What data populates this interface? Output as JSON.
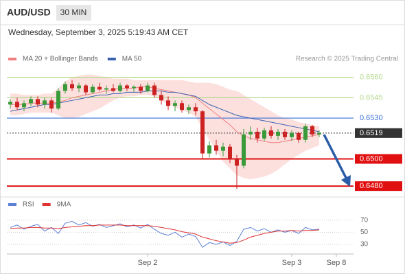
{
  "header": {
    "symbol": "AUD/USD",
    "interval": "30 MIN",
    "timestamp": "Wednesday, September 3, 2025 5:19:43 AM CET",
    "source": "Research © 2025 Trading Central"
  },
  "chart_data": {
    "type": "candlestick",
    "xlim": [
      -0.5,
      50
    ],
    "ylim": [
      0.6473,
      0.6579
    ],
    "xticks": [
      {
        "value": 20,
        "label": "Sep 2"
      },
      {
        "value": 41,
        "label": "Sep 3"
      },
      {
        "value": 47.5,
        "label": "Sep 8"
      }
    ],
    "up_color": "#3a9a3a",
    "down_color": "#cc2222",
    "candles": {
      "open": [
        0.654,
        0.6542,
        0.6538,
        0.6541,
        0.6544,
        0.654,
        0.6543,
        0.6537,
        0.655,
        0.6555,
        0.6552,
        0.6554,
        0.6549,
        0.6553,
        0.6551,
        0.6552,
        0.655,
        0.6554,
        0.6552,
        0.6553,
        0.655,
        0.6554,
        0.6547,
        0.6543,
        0.6539,
        0.6541,
        0.6536,
        0.6538,
        0.6535,
        0.6504,
        0.651,
        0.6506,
        0.6509,
        0.65,
        0.6495,
        0.6518,
        0.652,
        0.6515,
        0.6521,
        0.6517,
        0.652,
        0.6516,
        0.6519,
        0.6514,
        0.6524,
        0.6518
      ],
      "high": [
        0.6544,
        0.6545,
        0.6543,
        0.6546,
        0.6546,
        0.6545,
        0.6545,
        0.6552,
        0.6557,
        0.6558,
        0.6556,
        0.6555,
        0.6555,
        0.6556,
        0.6554,
        0.6555,
        0.6556,
        0.6555,
        0.6554,
        0.6555,
        0.6556,
        0.6556,
        0.655,
        0.6546,
        0.6543,
        0.6543,
        0.654,
        0.6541,
        0.6536,
        0.6513,
        0.6514,
        0.6512,
        0.6511,
        0.6503,
        0.6522,
        0.6524,
        0.6523,
        0.6523,
        0.6524,
        0.6522,
        0.6522,
        0.6521,
        0.652,
        0.6526,
        0.6525,
        0.6521
      ],
      "low": [
        0.6537,
        0.6536,
        0.6535,
        0.6539,
        0.6538,
        0.6537,
        0.6534,
        0.6536,
        0.6548,
        0.655,
        0.6549,
        0.6547,
        0.6548,
        0.655,
        0.6548,
        0.6549,
        0.6549,
        0.655,
        0.6549,
        0.6548,
        0.6549,
        0.6545,
        0.654,
        0.6536,
        0.6535,
        0.6534,
        0.6533,
        0.6532,
        0.65,
        0.6501,
        0.6503,
        0.6502,
        0.6497,
        0.6478,
        0.6493,
        0.6514,
        0.6512,
        0.6513,
        0.6515,
        0.6514,
        0.6514,
        0.6513,
        0.6512,
        0.6512,
        0.6516,
        0.6516
      ],
      "close": [
        0.6542,
        0.6538,
        0.6541,
        0.6544,
        0.654,
        0.6543,
        0.6537,
        0.655,
        0.6555,
        0.6552,
        0.6554,
        0.6549,
        0.6553,
        0.6551,
        0.6552,
        0.655,
        0.6554,
        0.6552,
        0.6553,
        0.655,
        0.6554,
        0.6547,
        0.6543,
        0.6539,
        0.6541,
        0.6536,
        0.6538,
        0.6535,
        0.6504,
        0.651,
        0.6506,
        0.6509,
        0.65,
        0.6495,
        0.6518,
        0.652,
        0.6515,
        0.6521,
        0.6517,
        0.652,
        0.6516,
        0.6519,
        0.6514,
        0.6524,
        0.6518,
        0.6519
      ]
    },
    "bollinger": {
      "color": "#fbd3d0",
      "upper": [
        0.6548,
        0.6548,
        0.6547,
        0.6547,
        0.6547,
        0.6548,
        0.6548,
        0.6552,
        0.6557,
        0.656,
        0.6561,
        0.6562,
        0.6562,
        0.6561,
        0.656,
        0.6559,
        0.6559,
        0.6559,
        0.6558,
        0.6558,
        0.6558,
        0.6558,
        0.6558,
        0.6558,
        0.6558,
        0.6558,
        0.6557,
        0.6556,
        0.6556,
        0.6556,
        0.6555,
        0.6553,
        0.6551,
        0.655,
        0.6547,
        0.6544,
        0.6541,
        0.6538,
        0.6535,
        0.6532,
        0.653,
        0.6529,
        0.6527,
        0.6526,
        0.6525,
        0.6524
      ],
      "lower": [
        0.6532,
        0.6532,
        0.6533,
        0.6534,
        0.6534,
        0.6534,
        0.6534,
        0.6532,
        0.653,
        0.653,
        0.6531,
        0.6533,
        0.6535,
        0.6537,
        0.654,
        0.6543,
        0.6545,
        0.6546,
        0.6546,
        0.6547,
        0.6547,
        0.6546,
        0.6543,
        0.654,
        0.6538,
        0.6536,
        0.6534,
        0.6531,
        0.6522,
        0.6514,
        0.6506,
        0.6498,
        0.6493,
        0.6488,
        0.6486,
        0.6485,
        0.6486,
        0.6487,
        0.6489,
        0.6492,
        0.6496,
        0.65,
        0.6503,
        0.6506,
        0.6508,
        0.651
      ]
    },
    "series": [
      {
        "name": "MA 20 + Bollinger Bands",
        "color": "#f08080",
        "values": [
          0.654,
          0.654,
          0.654,
          0.6541,
          0.6541,
          0.6541,
          0.6541,
          0.6542,
          0.6543,
          0.6545,
          0.6546,
          0.6547,
          0.6548,
          0.6549,
          0.655,
          0.6551,
          0.6552,
          0.6552,
          0.6552,
          0.6553,
          0.6553,
          0.6552,
          0.6551,
          0.655,
          0.6549,
          0.6548,
          0.6547,
          0.6545,
          0.6541,
          0.6537,
          0.6533,
          0.6529,
          0.6525,
          0.652,
          0.6517,
          0.6515,
          0.6514,
          0.6513,
          0.6512,
          0.6512,
          0.6513,
          0.6514,
          0.6515,
          0.6516,
          0.6517,
          0.6518
        ]
      },
      {
        "name": "MA 50",
        "color": "#3a62b0",
        "values": [
          0.6535,
          0.6536,
          0.6537,
          0.6538,
          0.6539,
          0.654,
          0.654,
          0.6541,
          0.6542,
          0.6543,
          0.6544,
          0.6545,
          0.6546,
          0.6547,
          0.6547,
          0.6548,
          0.6548,
          0.6549,
          0.6549,
          0.6549,
          0.655,
          0.655,
          0.655,
          0.6549,
          0.6549,
          0.6548,
          0.6547,
          0.6546,
          0.6543,
          0.654,
          0.6538,
          0.6536,
          0.6534,
          0.6532,
          0.6531,
          0.653,
          0.6529,
          0.6528,
          0.6527,
          0.6526,
          0.6525,
          0.6524,
          0.6523,
          0.6522,
          0.6521,
          0.652
        ]
      }
    ],
    "levels": [
      {
        "value": 0.656,
        "label": "0.6560",
        "color": "#b5d98c",
        "box": false
      },
      {
        "value": 0.6545,
        "label": "0.6545",
        "color": "#b5d98c",
        "box": false
      },
      {
        "value": 0.653,
        "label": "0.6530",
        "color": "#3a6fd8",
        "box": false
      },
      {
        "value": 0.6519,
        "label": "0.6519",
        "color": "#333333",
        "box": true,
        "dashed": true
      },
      {
        "value": 0.65,
        "label": "0.6500",
        "color": "#e01010",
        "box": true
      },
      {
        "value": 0.648,
        "label": "0.6480",
        "color": "#e01010",
        "box": true
      }
    ],
    "rsi": {
      "ylim": [
        14,
        88
      ],
      "yticks": [
        30,
        50,
        70
      ],
      "series": [
        {
          "name": "RSI",
          "color": "#5b7fd6",
          "values": [
            58,
            62,
            55,
            60,
            63,
            52,
            58,
            48,
            65,
            68,
            62,
            66,
            60,
            63,
            58,
            61,
            64,
            59,
            62,
            57,
            63,
            55,
            48,
            45,
            50,
            42,
            47,
            43,
            25,
            33,
            30,
            34,
            28,
            35,
            55,
            58,
            52,
            56,
            50,
            54,
            50,
            53,
            48,
            58,
            54,
            55
          ]
        },
        {
          "name": "9MA",
          "color": "#e03030",
          "values": [
            56,
            57,
            57,
            58,
            58,
            57,
            57,
            56,
            58,
            59,
            60,
            61,
            61,
            62,
            62,
            62,
            62,
            61,
            61,
            61,
            61,
            60,
            58,
            56,
            54,
            51,
            49,
            47,
            42,
            39,
            36,
            34,
            32,
            33,
            37,
            42,
            45,
            48,
            50,
            52,
            52,
            53,
            52,
            53,
            53,
            54
          ]
        }
      ]
    }
  }
}
